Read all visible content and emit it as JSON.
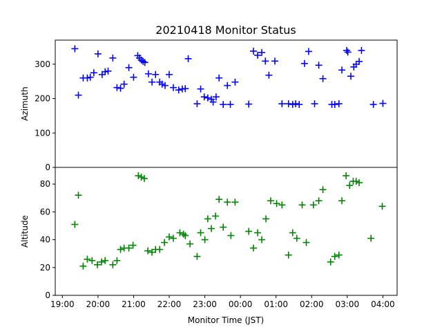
{
  "chart_data": {
    "type": "scatter",
    "title": "20210418 Monitor Status",
    "xlabel": "Monitor Time (JST)",
    "x_ticks": [
      "19:00",
      "20:00",
      "21:00",
      "22:00",
      "23:00",
      "00:00",
      "01:00",
      "02:00",
      "03:00",
      "04:00"
    ],
    "x_tick_hours": [
      19,
      20,
      21,
      22,
      23,
      24,
      25,
      26,
      27,
      28
    ],
    "xlim": [
      18.8,
      28.4
    ],
    "marker": "plus",
    "grid": false,
    "legend": "none",
    "panels": [
      {
        "ylabel": "Azimuth",
        "ylim": [
          0,
          370
        ],
        "yticks": [
          0,
          100,
          200,
          300
        ],
        "color": "#0000ff",
        "points": [
          [
            "19:21",
            345
          ],
          [
            "19:27",
            210
          ],
          [
            "19:35",
            260
          ],
          [
            "19:42",
            260
          ],
          [
            "19:47",
            262
          ],
          [
            "19:53",
            275
          ],
          [
            "20:00",
            330
          ],
          [
            "20:07",
            270
          ],
          [
            "20:12",
            278
          ],
          [
            "20:17",
            280
          ],
          [
            "20:25",
            318
          ],
          [
            "20:32",
            232
          ],
          [
            "20:38",
            230
          ],
          [
            "20:44",
            242
          ],
          [
            "20:52",
            290
          ],
          [
            "21:00",
            262
          ],
          [
            "21:07",
            325
          ],
          [
            "21:10",
            318
          ],
          [
            "21:13",
            312
          ],
          [
            "21:16",
            308
          ],
          [
            "21:19",
            305
          ],
          [
            "21:25",
            272
          ],
          [
            "21:31",
            248
          ],
          [
            "21:37",
            270
          ],
          [
            "21:44",
            248
          ],
          [
            "21:48",
            242
          ],
          [
            "21:53",
            238
          ],
          [
            "22:00",
            270
          ],
          [
            "22:07",
            232
          ],
          [
            "22:16",
            225
          ],
          [
            "22:22",
            228
          ],
          [
            "22:27",
            229
          ],
          [
            "22:32",
            316
          ],
          [
            "22:47",
            185
          ],
          [
            "22:53",
            228
          ],
          [
            "22:59",
            205
          ],
          [
            "23:05",
            202
          ],
          [
            "23:11",
            198
          ],
          [
            "23:14",
            190
          ],
          [
            "23:19",
            205
          ],
          [
            "23:24",
            260
          ],
          [
            "23:31",
            183
          ],
          [
            "23:38",
            238
          ],
          [
            "23:43",
            183
          ],
          [
            "23:51",
            248
          ],
          [
            "24:14",
            184
          ],
          [
            "24:22",
            338
          ],
          [
            "24:29",
            326
          ],
          [
            "24:36",
            334
          ],
          [
            "24:42",
            309
          ],
          [
            "24:48",
            268
          ],
          [
            "24:58",
            309
          ],
          [
            "25:10",
            185
          ],
          [
            "25:21",
            185
          ],
          [
            "25:28",
            183
          ],
          [
            "25:33",
            185
          ],
          [
            "25:39",
            183
          ],
          [
            "25:48",
            302
          ],
          [
            "25:55",
            337
          ],
          [
            "26:05",
            185
          ],
          [
            "26:12",
            297
          ],
          [
            "26:19",
            258
          ],
          [
            "26:34",
            183
          ],
          [
            "26:39",
            183
          ],
          [
            "26:46",
            185
          ],
          [
            "26:51",
            283
          ],
          [
            "26:59",
            340
          ],
          [
            "27:01",
            335
          ],
          [
            "27:06",
            265
          ],
          [
            "27:11",
            292
          ],
          [
            "27:15",
            300
          ],
          [
            "27:20",
            308
          ],
          [
            "27:24",
            340
          ],
          [
            "27:44",
            183
          ],
          [
            "28:00",
            186
          ]
        ]
      },
      {
        "ylabel": "Altitude",
        "ylim": [
          0,
          92
        ],
        "yticks": [
          0,
          20,
          40,
          60,
          80
        ],
        "color": "#008000",
        "points": [
          [
            "19:21",
            51
          ],
          [
            "19:27",
            72
          ],
          [
            "19:35",
            21
          ],
          [
            "19:42",
            26
          ],
          [
            "19:50",
            25
          ],
          [
            "19:59",
            22
          ],
          [
            "20:06",
            24
          ],
          [
            "20:12",
            25
          ],
          [
            "20:25",
            22
          ],
          [
            "20:32",
            25
          ],
          [
            "20:38",
            33
          ],
          [
            "20:44",
            34
          ],
          [
            "20:52",
            34
          ],
          [
            "20:59",
            36
          ],
          [
            "21:08",
            86
          ],
          [
            "21:13",
            85
          ],
          [
            "21:18",
            84
          ],
          [
            "21:24",
            32
          ],
          [
            "21:31",
            31
          ],
          [
            "21:37",
            33
          ],
          [
            "21:44",
            33
          ],
          [
            "21:52",
            38
          ],
          [
            "22:00",
            42
          ],
          [
            "22:07",
            41
          ],
          [
            "22:18",
            45
          ],
          [
            "22:24",
            44
          ],
          [
            "22:27",
            43
          ],
          [
            "22:35",
            37
          ],
          [
            "22:47",
            28
          ],
          [
            "22:53",
            45
          ],
          [
            "23:00",
            40
          ],
          [
            "23:05",
            55
          ],
          [
            "23:11",
            48
          ],
          [
            "23:18",
            57
          ],
          [
            "23:24",
            69
          ],
          [
            "23:31",
            49
          ],
          [
            "23:38",
            67
          ],
          [
            "23:44",
            43
          ],
          [
            "23:51",
            67
          ],
          [
            "24:14",
            46
          ],
          [
            "24:22",
            34
          ],
          [
            "24:29",
            45
          ],
          [
            "24:36",
            40
          ],
          [
            "24:43",
            55
          ],
          [
            "24:51",
            68
          ],
          [
            "25:01",
            66
          ],
          [
            "25:10",
            65
          ],
          [
            "25:21",
            29
          ],
          [
            "25:28",
            45
          ],
          [
            "25:35",
            41
          ],
          [
            "25:44",
            65
          ],
          [
            "25:51",
            38
          ],
          [
            "26:03",
            65
          ],
          [
            "26:12",
            68
          ],
          [
            "26:19",
            76
          ],
          [
            "26:32",
            24
          ],
          [
            "26:39",
            28
          ],
          [
            "26:46",
            29
          ],
          [
            "26:51",
            68
          ],
          [
            "26:58",
            86
          ],
          [
            "27:04",
            79
          ],
          [
            "27:10",
            82
          ],
          [
            "27:15",
            82
          ],
          [
            "27:20",
            81
          ],
          [
            "27:40",
            41
          ],
          [
            "27:59",
            64
          ]
        ]
      }
    ]
  }
}
